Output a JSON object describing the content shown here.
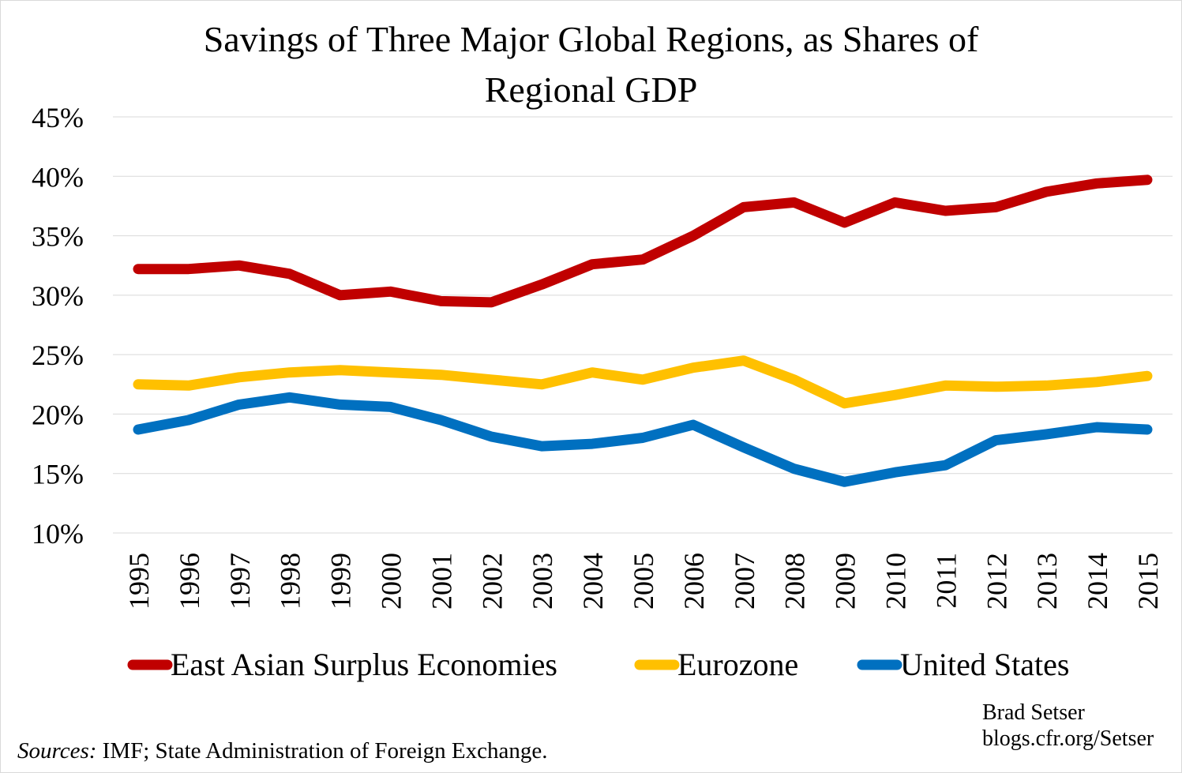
{
  "chart_data": {
    "type": "line",
    "title_line1": "Savings of Three Major Global Regions, as Shares of",
    "title_line2": "Regional GDP",
    "x": [
      "1995",
      "1996",
      "1997",
      "1998",
      "1999",
      "2000",
      "2001",
      "2002",
      "2003",
      "2004",
      "2005",
      "2006",
      "2007",
      "2008",
      "2009",
      "2010",
      "2011",
      "2012",
      "2013",
      "2014",
      "2015"
    ],
    "yticks": [
      "10%",
      "15%",
      "20%",
      "25%",
      "30%",
      "35%",
      "40%",
      "45%"
    ],
    "ylim": [
      10,
      45
    ],
    "grid": true,
    "legend_position": "bottom",
    "series": [
      {
        "name": "East Asian Surplus Economies",
        "color": "#c00000",
        "values": [
          32.2,
          32.2,
          32.5,
          31.8,
          30.0,
          30.3,
          29.5,
          29.4,
          30.9,
          32.6,
          33.0,
          35.0,
          37.4,
          37.8,
          36.1,
          37.8,
          37.1,
          37.4,
          38.7,
          39.4,
          39.7
        ]
      },
      {
        "name": "Eurozone",
        "color": "#ffc000",
        "values": [
          22.5,
          22.4,
          23.1,
          23.5,
          23.7,
          23.5,
          23.3,
          22.9,
          22.5,
          23.5,
          22.9,
          23.9,
          24.5,
          22.9,
          20.9,
          21.6,
          22.4,
          22.3,
          22.4,
          22.7,
          23.2
        ]
      },
      {
        "name": "United States",
        "color": "#0070c0",
        "values": [
          18.7,
          19.5,
          20.8,
          21.4,
          20.8,
          20.6,
          19.5,
          18.1,
          17.3,
          17.5,
          18.0,
          19.1,
          17.2,
          15.4,
          14.3,
          15.1,
          15.7,
          17.8,
          18.3,
          18.9,
          18.7
        ]
      }
    ]
  },
  "credit": {
    "line1": "Brad Setser",
    "line2": "blogs.cfr.org/Setser"
  },
  "sources": {
    "label": "Sources:",
    "text": " IMF; State Administration of Foreign Exchange."
  }
}
